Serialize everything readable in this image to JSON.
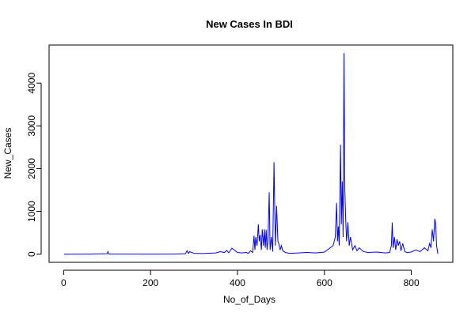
{
  "chart_data": {
    "type": "line",
    "title": "New Cases In BDI",
    "x_label": "No_of_Days",
    "y_label": "New_Cases",
    "color": "#0000ff",
    "x": [
      1,
      40,
      60,
      100,
      102,
      104,
      150,
      200,
      250,
      280,
      284,
      287,
      290,
      300,
      320,
      350,
      360,
      370,
      375,
      380,
      387,
      400,
      410,
      420,
      425,
      430,
      435,
      438,
      440,
      442,
      445,
      448,
      450,
      452,
      455,
      457,
      460,
      462,
      464,
      466,
      468,
      470,
      473,
      475,
      478,
      481,
      484,
      487,
      490,
      493,
      495,
      498,
      501,
      504,
      507,
      510,
      515,
      520,
      540,
      560,
      580,
      600,
      620,
      625,
      628,
      630,
      632,
      634,
      637,
      639,
      641,
      643,
      645,
      647,
      649,
      651,
      654,
      657,
      660,
      665,
      670,
      675,
      680,
      690,
      700,
      720,
      740,
      750,
      754,
      756,
      758,
      761,
      764,
      767,
      770,
      773,
      776,
      780,
      785,
      790,
      800,
      810,
      820,
      830,
      838,
      842,
      845,
      848,
      851,
      854,
      856,
      858,
      861
    ],
    "values": [
      0,
      2,
      5,
      10,
      60,
      5,
      3,
      2,
      3,
      10,
      80,
      20,
      60,
      20,
      15,
      30,
      60,
      40,
      90,
      30,
      140,
      40,
      30,
      40,
      20,
      80,
      40,
      430,
      100,
      400,
      200,
      700,
      300,
      450,
      100,
      580,
      200,
      580,
      150,
      570,
      100,
      300,
      1450,
      100,
      400,
      60,
      2150,
      200,
      1130,
      300,
      250,
      100,
      200,
      80,
      60,
      40,
      30,
      20,
      30,
      40,
      30,
      50,
      200,
      400,
      1200,
      300,
      650,
      200,
      2560,
      700,
      1700,
      400,
      4700,
      1500,
      800,
      300,
      750,
      200,
      400,
      100,
      200,
      80,
      150,
      60,
      40,
      50,
      30,
      40,
      200,
      740,
      150,
      400,
      100,
      350,
      200,
      300,
      80,
      250,
      60,
      40,
      50,
      100,
      60,
      150,
      80,
      250,
      150,
      580,
      300,
      830,
      700,
      200,
      10
    ],
    "xlim": [
      -33.4,
      895.4
    ],
    "ylim": [
      -190,
      4890
    ],
    "xticks": [
      0,
      200,
      400,
      600,
      800
    ],
    "yticks": [
      0,
      1000,
      2000,
      3000,
      4000
    ]
  }
}
